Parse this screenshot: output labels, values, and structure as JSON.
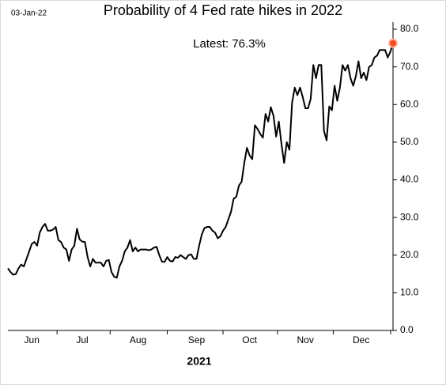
{
  "chart_data": {
    "type": "line",
    "date_stamp": "03-Jan-22",
    "title": "Probability of 4 Fed rate hikes in 2022",
    "annotation": "Latest:  76.3%",
    "xlabel": "2021",
    "categories": [
      null,
      null,
      null,
      null,
      null,
      null,
      null,
      null,
      null,
      "Jun",
      null,
      null,
      null,
      null,
      null,
      null,
      null,
      null,
      null,
      null,
      null,
      null,
      null,
      null,
      null,
      null,
      null,
      null,
      "Jul",
      null,
      null,
      null,
      null,
      null,
      null,
      null,
      null,
      null,
      null,
      null,
      null,
      null,
      null,
      null,
      null,
      null,
      null,
      null,
      null,
      "Aug",
      null,
      null,
      null,
      null,
      null,
      null,
      null,
      null,
      null,
      null,
      null,
      null,
      null,
      null,
      null,
      null,
      null,
      null,
      null,
      null,
      null,
      "Sep",
      null,
      null,
      null,
      null,
      null,
      null,
      null,
      null,
      null,
      null,
      null,
      null,
      null,
      null,
      null,
      null,
      null,
      null,
      null,
      "Oct",
      null,
      null,
      null,
      null,
      null,
      null,
      null,
      null,
      null,
      null,
      null,
      null,
      null,
      null,
      null,
      null,
      null,
      null,
      null,
      null,
      "Nov",
      null,
      null,
      null,
      null,
      null,
      null,
      null,
      null,
      null,
      null,
      null,
      null,
      null,
      null,
      null,
      null,
      null,
      null,
      null,
      null,
      "Dec",
      null,
      null,
      null,
      null,
      null,
      null,
      null,
      null,
      null,
      null,
      null,
      null
    ],
    "series": [
      {
        "color": "#000000",
        "values": [
          16.5,
          15.5,
          14.8,
          15,
          16.5,
          17.5,
          17,
          19,
          21,
          23,
          23.5,
          22.5,
          26,
          27.5,
          28.3,
          26.5,
          26.5,
          26.8,
          27.5,
          24,
          23.5,
          22,
          21.5,
          18.5,
          21.5,
          22.5,
          27,
          24.2,
          23.6,
          23.5,
          19.5,
          17,
          19,
          18,
          18,
          18,
          17,
          18.5,
          18.7,
          15.5,
          14.3,
          14,
          17,
          18.5,
          21,
          22,
          24,
          21,
          22,
          21,
          21.5,
          21.5,
          21.5,
          21.3,
          21.5,
          22,
          22.2,
          20,
          18.3,
          18.2,
          19.5,
          18.5,
          18.3,
          19.5,
          19.3,
          20,
          19.5,
          19,
          20,
          20.2,
          19,
          19,
          22.5,
          25.5,
          27.2,
          27.5,
          27.5,
          26.5,
          26,
          24.5,
          25,
          26.5,
          27.5,
          29.5,
          31.5,
          35,
          35.5,
          38.5,
          39.5,
          44.5,
          48.5,
          46.5,
          45.5,
          54.5,
          53.5,
          52.2,
          51.2,
          57.5,
          55.5,
          59.3,
          57,
          51.5,
          55.5,
          49.5,
          44.5,
          50,
          48,
          60.5,
          64.5,
          62.5,
          64.5,
          62,
          59,
          59,
          61.5,
          70.5,
          67,
          70.5,
          70.5,
          53,
          50.5,
          59.5,
          58.5,
          65,
          61,
          64.5,
          70.5,
          69,
          70.5,
          67,
          65,
          67.5,
          71.5,
          67,
          68.5,
          66.5,
          70,
          70.5,
          72.5,
          73,
          74.5,
          74.5,
          74.5,
          72.5,
          74,
          76.3
        ]
      }
    ],
    "last_marker_color": "#f04e23",
    "ylim": [
      0,
      80
    ],
    "yticks": [
      {
        "value": 0,
        "label": "0.0"
      },
      {
        "value": 10,
        "label": "10.0"
      },
      {
        "value": 20,
        "label": "20.0"
      },
      {
        "value": 30,
        "label": "30.0"
      },
      {
        "value": 40,
        "label": "40.0"
      },
      {
        "value": 50,
        "label": "50.0"
      },
      {
        "value": 60,
        "label": "60.0"
      },
      {
        "value": 70,
        "label": "70.0"
      },
      {
        "value": 80,
        "label": "80.0"
      }
    ],
    "grid": false
  }
}
